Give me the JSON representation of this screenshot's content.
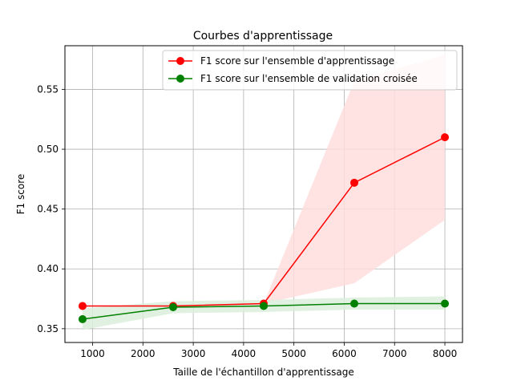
{
  "chart_data": {
    "type": "line",
    "title": "Courbes d'apprentissage",
    "xlabel": "Taille de l'échantillon d'apprentissage",
    "ylabel": "F1 score",
    "xlim": [
      450,
      8350
    ],
    "ylim": [
      0.3385,
      0.5865
    ],
    "xticks": [
      1000,
      2000,
      3000,
      4000,
      5000,
      6000,
      7000,
      8000
    ],
    "xtick_labels": [
      "1000",
      "2000",
      "3000",
      "4000",
      "5000",
      "6000",
      "7000",
      "8000"
    ],
    "yticks": [
      0.35,
      0.4,
      0.45,
      0.5,
      0.55
    ],
    "ytick_labels": [
      "0.35",
      "0.40",
      "0.45",
      "0.50",
      "0.55"
    ],
    "grid": true,
    "legend_position": "top-right",
    "x": [
      800,
      2600,
      4400,
      6200,
      8000
    ],
    "series": [
      {
        "name": "F1 score sur l'ensemble d'apprentissage",
        "color": "#ff0000",
        "band_color": "#ffdddd",
        "values": [
          0.369,
          0.369,
          0.371,
          0.472,
          0.51
        ],
        "lower": [
          0.369,
          0.369,
          0.371,
          0.388,
          0.441
        ],
        "upper": [
          0.369,
          0.369,
          0.371,
          0.557,
          0.579
        ]
      },
      {
        "name": "F1 score sur l'ensemble de validation croisée",
        "color": "#008000",
        "band_color": "#dcefdc",
        "values": [
          0.358,
          0.368,
          0.369,
          0.371,
          0.371
        ],
        "lower": [
          0.349,
          0.363,
          0.364,
          0.366,
          0.366
        ],
        "upper": [
          0.367,
          0.373,
          0.374,
          0.376,
          0.377
        ]
      }
    ]
  }
}
